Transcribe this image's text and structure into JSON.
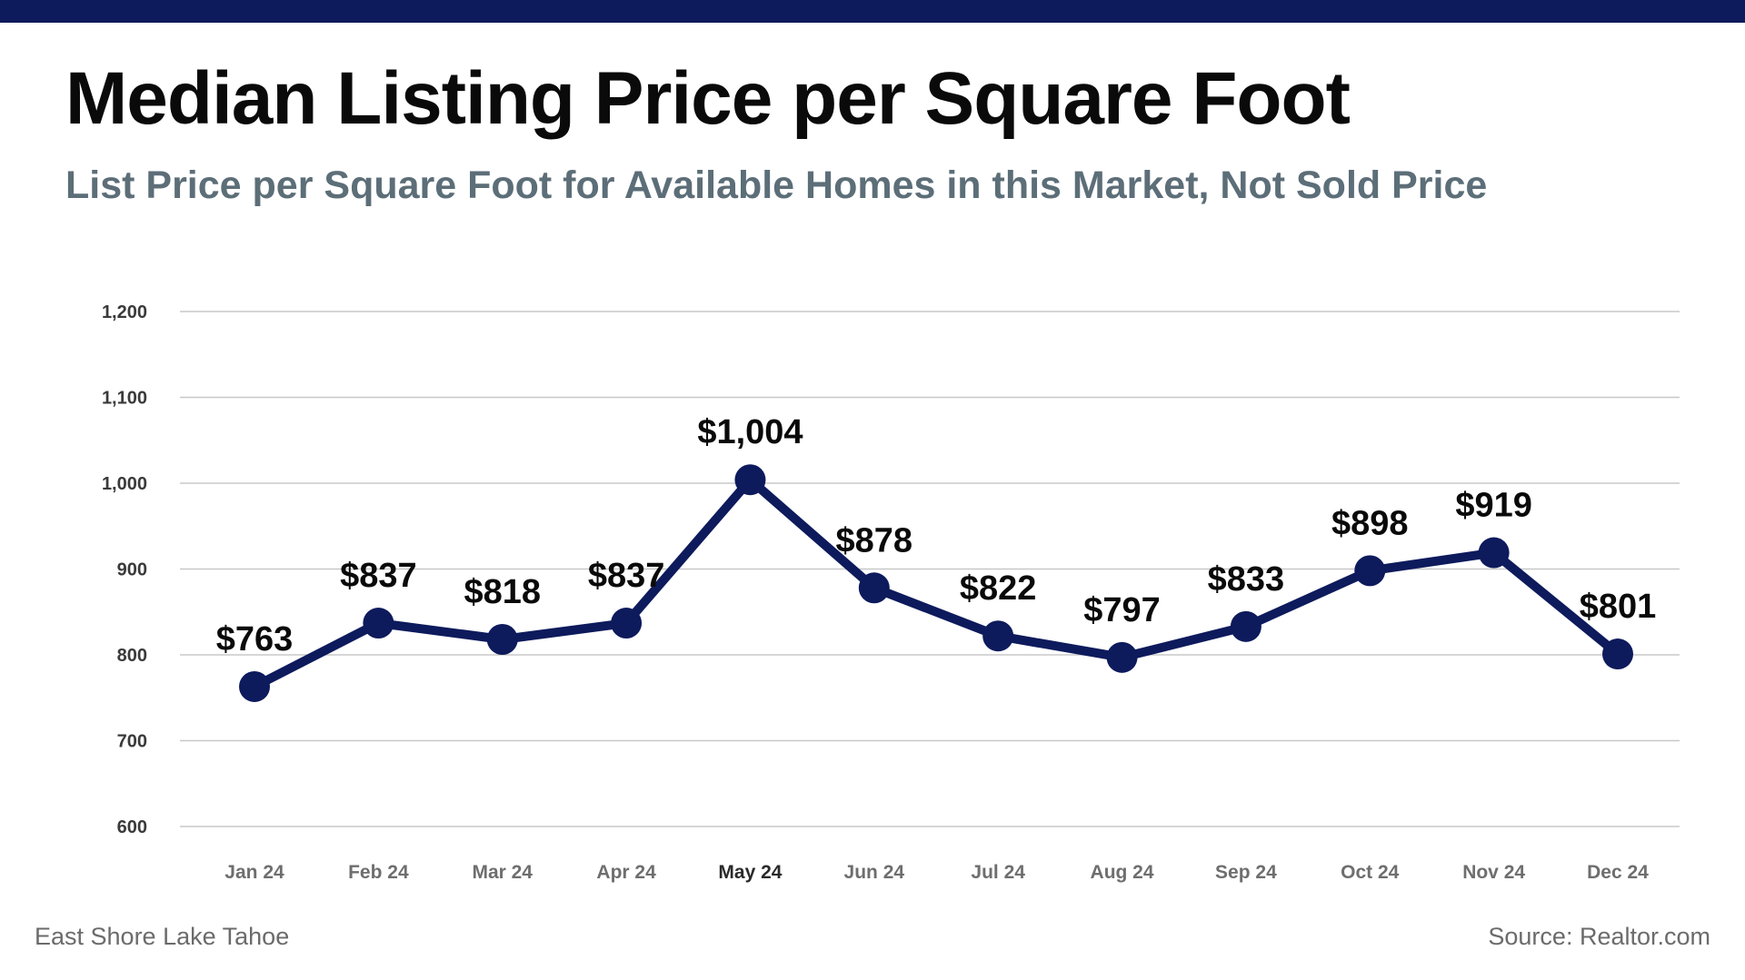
{
  "header": {
    "title": "Median Listing Price per Square Foot",
    "subtitle": "List Price per Square Foot for Available Homes in this Market, Not Sold Price"
  },
  "footer": {
    "location": "East Shore Lake Tahoe",
    "source": "Source: Realtor.com"
  },
  "colors": {
    "brand": "#0d1a5c",
    "line": "#0d1a5c",
    "subtitle": "#5c6e78",
    "grid": "#c8c8c8"
  },
  "chart_data": {
    "type": "line",
    "title": "",
    "xlabel": "",
    "ylabel": "",
    "categories": [
      "Jan 24",
      "Feb 24",
      "Mar 24",
      "Apr 24",
      "May 24",
      "Jun 24",
      "Jul 24",
      "Aug 24",
      "Sep 24",
      "Oct 24",
      "Nov 24",
      "Dec 24"
    ],
    "values": [
      763,
      837,
      818,
      837,
      1004,
      878,
      822,
      797,
      833,
      898,
      919,
      801
    ],
    "data_labels": [
      "$763",
      "$837",
      "$818",
      "$837",
      "$1,004",
      "$878",
      "$822",
      "$797",
      "$833",
      "$898",
      "$919",
      "$801"
    ],
    "ylim": [
      600,
      1200
    ],
    "yticks": [
      600,
      700,
      800,
      900,
      1000,
      1100,
      1200
    ],
    "ytick_labels": [
      "600",
      "700",
      "800",
      "900",
      "1,000",
      "1,100",
      "1,200"
    ],
    "highlighted_category": "May 24",
    "grid": true,
    "legend": "none"
  }
}
